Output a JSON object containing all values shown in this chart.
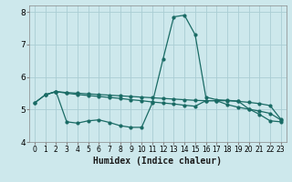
{
  "xlabel": "Humidex (Indice chaleur)",
  "xlim": [
    -0.5,
    23.5
  ],
  "ylim": [
    4.0,
    8.2
  ],
  "yticks": [
    4,
    5,
    6,
    7,
    8
  ],
  "xticks": [
    0,
    1,
    2,
    3,
    4,
    5,
    6,
    7,
    8,
    9,
    10,
    11,
    12,
    13,
    14,
    15,
    16,
    17,
    18,
    19,
    20,
    21,
    22,
    23
  ],
  "bg_color": "#cde8ec",
  "grid_color": "#aacdd4",
  "line_color": "#1a6b65",
  "top_x": [
    0,
    1,
    2,
    3,
    4,
    5,
    6,
    7,
    8,
    9,
    10,
    11,
    12,
    13,
    14,
    15,
    16,
    17,
    18,
    19,
    20,
    21,
    22,
    23
  ],
  "top_y": [
    5.2,
    5.45,
    5.55,
    5.52,
    5.5,
    5.48,
    5.46,
    5.44,
    5.42,
    5.4,
    5.38,
    5.36,
    5.34,
    5.32,
    5.3,
    5.28,
    5.27,
    5.27,
    5.27,
    5.25,
    5.22,
    5.18,
    5.12,
    4.7
  ],
  "mid_x": [
    0,
    1,
    2,
    3,
    4,
    5,
    6,
    7,
    8,
    9,
    10,
    11,
    12,
    13,
    14,
    15,
    16,
    17,
    18,
    19,
    20,
    21,
    22,
    23
  ],
  "mid_y": [
    5.2,
    5.45,
    5.55,
    5.5,
    5.46,
    5.43,
    5.4,
    5.37,
    5.34,
    5.3,
    5.27,
    5.23,
    5.2,
    5.17,
    5.13,
    5.1,
    5.27,
    5.27,
    5.15,
    5.07,
    5.01,
    4.95,
    4.88,
    4.68
  ],
  "peak_x": [
    1,
    2,
    3,
    4,
    5,
    6,
    7,
    8,
    9,
    10,
    11,
    12,
    13,
    14,
    15,
    16,
    17,
    18,
    19,
    20,
    21,
    22,
    23
  ],
  "peak_y": [
    5.45,
    5.55,
    4.62,
    4.58,
    4.65,
    4.68,
    4.6,
    4.5,
    4.45,
    4.45,
    5.2,
    6.55,
    7.85,
    7.9,
    7.3,
    5.38,
    5.3,
    5.28,
    5.26,
    5.02,
    4.85,
    4.65,
    4.62
  ]
}
